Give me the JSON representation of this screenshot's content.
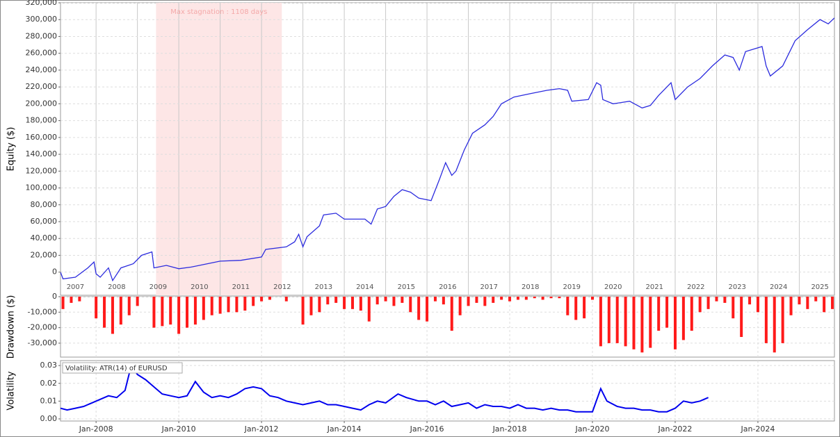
{
  "chart_data": [
    {
      "type": "line",
      "ylabel": "Equity ($)",
      "color": "#2b2bde",
      "xlim": [
        2007.14,
        2025.85
      ],
      "ylim": [
        -27500,
        320000
      ],
      "yticks": [
        0,
        {
          "value": 20000,
          "label": "20,000"
        },
        {
          "value": 40000,
          "label": "40,000"
        },
        {
          "value": 60000,
          "label": "60,000"
        },
        {
          "value": 80000,
          "label": "80,000"
        },
        {
          "value": 100000,
          "label": "100,000"
        },
        {
          "value": 120000,
          "label": "120,000"
        },
        {
          "value": 140000,
          "label": "140,000"
        },
        {
          "value": 160000,
          "label": "160,000"
        },
        {
          "value": 180000,
          "label": "180,000"
        },
        {
          "value": 200000,
          "label": "200,000"
        },
        {
          "value": 220000,
          "label": "220,000"
        },
        {
          "value": 240000,
          "label": "240,000"
        },
        {
          "value": 260000,
          "label": "260,000"
        },
        {
          "value": 280000,
          "label": "280,000"
        },
        {
          "value": 300000,
          "label": "300,000"
        },
        {
          "value": 320000,
          "label": "320,000"
        }
      ],
      "grid": true,
      "year_lines": [
        2008,
        2009,
        2010,
        2011,
        2012,
        2013,
        2014,
        2015,
        2016,
        2017,
        2018,
        2019,
        2020,
        2021,
        2022,
        2023,
        2024,
        2025
      ],
      "year_labels": [
        "2007",
        "2008",
        "2009",
        "2010",
        "2011",
        "2012",
        "2013",
        "2014",
        "2015",
        "2016",
        "2017",
        "2018",
        "2019",
        "2020",
        "2021",
        "2022",
        "2023",
        "2024",
        "2025"
      ],
      "annotation": {
        "text": "Max stagnation : 1108 days",
        "xrange": [
          2009.45,
          2012.49
        ]
      },
      "x": [
        2007.14,
        2007.2,
        2007.5,
        2007.8,
        2007.95,
        2008.0,
        2008.1,
        2008.3,
        2008.4,
        2008.6,
        2008.9,
        2009.1,
        2009.35,
        2009.4,
        2009.7,
        2010.0,
        2010.3,
        2010.6,
        2011.0,
        2011.5,
        2012.0,
        2012.1,
        2012.6,
        2012.8,
        2012.9,
        2013.0,
        2013.1,
        2013.4,
        2013.5,
        2013.8,
        2014.0,
        2014.5,
        2014.65,
        2014.8,
        2015.0,
        2015.2,
        2015.4,
        2015.6,
        2015.8,
        2016.1,
        2016.3,
        2016.45,
        2016.6,
        2016.7,
        2016.9,
        2017.1,
        2017.4,
        2017.6,
        2017.8,
        2018.1,
        2018.5,
        2018.9,
        2019.2,
        2019.4,
        2019.5,
        2019.9,
        2020.1,
        2020.2,
        2020.25,
        2020.5,
        2020.9,
        2021.2,
        2021.4,
        2021.6,
        2021.9,
        2022.0,
        2022.3,
        2022.6,
        2022.9,
        2023.2,
        2023.4,
        2023.55,
        2023.7,
        2024.1,
        2024.2,
        2024.3,
        2024.6,
        2024.9,
        2025.2,
        2025.5,
        2025.7,
        2025.85
      ],
      "values": [
        0,
        -8000,
        -6000,
        5000,
        12000,
        -2000,
        -6000,
        5000,
        -10000,
        5000,
        10000,
        20000,
        24000,
        5000,
        8000,
        4000,
        6000,
        9000,
        13000,
        14000,
        18000,
        27000,
        30000,
        36000,
        45000,
        30000,
        42000,
        55000,
        68000,
        70000,
        63000,
        63000,
        57000,
        75000,
        78000,
        90000,
        98000,
        95000,
        88000,
        85000,
        110000,
        130000,
        115000,
        120000,
        145000,
        165000,
        175000,
        185000,
        200000,
        208000,
        212000,
        216000,
        218000,
        216000,
        203000,
        205000,
        225000,
        222000,
        205000,
        200000,
        203000,
        195000,
        198000,
        210000,
        225000,
        205000,
        220000,
        230000,
        245000,
        258000,
        255000,
        240000,
        262000,
        268000,
        245000,
        233000,
        245000,
        275000,
        288000,
        300000,
        295000,
        302000
      ]
    },
    {
      "type": "bar",
      "ylabel": "Drawdown ($)",
      "color": "#ff1a1a",
      "xlim": [
        2007.14,
        2025.85
      ],
      "ylim": [
        -39000,
        0
      ],
      "yticks": [
        0,
        {
          "value": -10000,
          "label": "-10,000"
        },
        {
          "value": -20000,
          "label": "-20,000"
        },
        {
          "value": -30000,
          "label": "-30,000"
        }
      ],
      "grid": true,
      "x": [
        2007.2,
        2007.4,
        2007.6,
        2007.8,
        2008.0,
        2008.2,
        2008.4,
        2008.6,
        2008.8,
        2009.0,
        2009.2,
        2009.4,
        2009.6,
        2009.8,
        2010.0,
        2010.2,
        2010.4,
        2010.6,
        2010.8,
        2011.0,
        2011.2,
        2011.4,
        2011.6,
        2011.8,
        2012.0,
        2012.2,
        2012.4,
        2012.6,
        2012.8,
        2013.0,
        2013.2,
        2013.4,
        2013.6,
        2013.8,
        2014.0,
        2014.2,
        2014.4,
        2014.6,
        2014.8,
        2015.0,
        2015.2,
        2015.4,
        2015.6,
        2015.8,
        2016.0,
        2016.2,
        2016.4,
        2016.6,
        2016.8,
        2017.0,
        2017.2,
        2017.4,
        2017.6,
        2017.8,
        2018.0,
        2018.2,
        2018.4,
        2018.6,
        2018.8,
        2019.0,
        2019.2,
        2019.4,
        2019.6,
        2019.8,
        2020.0,
        2020.2,
        2020.4,
        2020.6,
        2020.8,
        2021.0,
        2021.2,
        2021.4,
        2021.6,
        2021.8,
        2022.0,
        2022.2,
        2022.4,
        2022.6,
        2022.8,
        2023.0,
        2023.2,
        2023.4,
        2023.6,
        2023.8,
        2024.0,
        2024.2,
        2024.4,
        2024.6,
        2024.8,
        2025.0,
        2025.2,
        2025.4,
        2025.6,
        2025.8
      ],
      "values": [
        -8000,
        -4000,
        -3000,
        0,
        -14000,
        -20000,
        -24000,
        -18000,
        -12000,
        -6000,
        0,
        -20000,
        -19000,
        -18000,
        -24000,
        -20000,
        -18000,
        -15000,
        -12000,
        -11000,
        -10000,
        -10000,
        -9000,
        -6000,
        -3000,
        -2000,
        0,
        -3000,
        0,
        -18000,
        -12000,
        -10000,
        -5000,
        -4000,
        -8000,
        -8000,
        -9000,
        -16000,
        -5000,
        -3000,
        -6000,
        -4000,
        -10000,
        -15000,
        -16000,
        -3000,
        -5000,
        -22000,
        -12000,
        -6000,
        -4000,
        -6000,
        -4000,
        -2000,
        -3000,
        -2000,
        -2000,
        -1000,
        -2000,
        -1000,
        -1000,
        -12000,
        -15000,
        -14000,
        -2000,
        -32000,
        -30000,
        -30000,
        -32000,
        -34000,
        -36000,
        -33000,
        -22000,
        -20000,
        -34000,
        -28000,
        -22000,
        -10000,
        -8000,
        -3000,
        -4000,
        -14000,
        -26000,
        -5000,
        -10000,
        -30000,
        -36000,
        -30000,
        -12000,
        -5000,
        -8000,
        -3000,
        -10000,
        -8000
      ]
    },
    {
      "type": "line",
      "ylabel": "Volatility",
      "color": "#0000ee",
      "series_label": "Volatility: ATR(14) of EURUSD",
      "xlim": [
        2007.14,
        2025.85
      ],
      "ylim": [
        -0.0012,
        0.0328
      ],
      "yticks": [
        {
          "value": 0,
          "label": "0.00"
        },
        0.01,
        0.02,
        0.03
      ],
      "grid": true,
      "xticks": [
        {
          "value": 2008,
          "label": "Jan-2008"
        },
        {
          "value": 2010,
          "label": "Jan-2010"
        },
        {
          "value": 2012,
          "label": "Jan-2012"
        },
        {
          "value": 2014,
          "label": "Jan-2014"
        },
        {
          "value": 2016,
          "label": "Jan-2016"
        },
        {
          "value": 2018,
          "label": "Jan-2018"
        },
        {
          "value": 2020,
          "label": "Jan-2020"
        },
        {
          "value": 2022,
          "label": "Jan-2022"
        },
        {
          "value": 2024,
          "label": "Jan-2024"
        }
      ],
      "x": [
        2007.14,
        2007.3,
        2007.5,
        2007.7,
        2007.9,
        2008.1,
        2008.3,
        2008.5,
        2008.7,
        2008.85,
        2009.0,
        2009.2,
        2009.4,
        2009.6,
        2009.8,
        2010.0,
        2010.2,
        2010.4,
        2010.6,
        2010.8,
        2011.0,
        2011.2,
        2011.4,
        2011.6,
        2011.8,
        2012.0,
        2012.2,
        2012.4,
        2012.6,
        2012.8,
        2013.0,
        2013.2,
        2013.4,
        2013.6,
        2013.8,
        2014.0,
        2014.2,
        2014.4,
        2014.6,
        2014.8,
        2015.0,
        2015.3,
        2015.5,
        2015.8,
        2016.0,
        2016.2,
        2016.4,
        2016.6,
        2016.8,
        2017.0,
        2017.2,
        2017.4,
        2017.6,
        2017.8,
        2018.0,
        2018.2,
        2018.4,
        2018.6,
        2018.8,
        2019.0,
        2019.2,
        2019.4,
        2019.6,
        2019.8,
        2020.0,
        2020.2,
        2020.35,
        2020.6,
        2020.8,
        2021.0,
        2021.2,
        2021.4,
        2021.6,
        2021.8,
        2022.0,
        2022.2,
        2022.4,
        2022.6,
        2022.8
      ],
      "values": [
        0.006,
        0.005,
        0.006,
        0.007,
        0.009,
        0.011,
        0.013,
        0.012,
        0.016,
        0.03,
        0.025,
        0.022,
        0.018,
        0.014,
        0.013,
        0.012,
        0.013,
        0.021,
        0.015,
        0.012,
        0.013,
        0.012,
        0.014,
        0.017,
        0.018,
        0.017,
        0.013,
        0.012,
        0.01,
        0.009,
        0.008,
        0.009,
        0.01,
        0.008,
        0.008,
        0.007,
        0.006,
        0.005,
        0.008,
        0.01,
        0.009,
        0.014,
        0.012,
        0.01,
        0.01,
        0.008,
        0.01,
        0.007,
        0.008,
        0.009,
        0.006,
        0.008,
        0.007,
        0.007,
        0.006,
        0.008,
        0.006,
        0.006,
        0.005,
        0.006,
        0.005,
        0.005,
        0.004,
        0.004,
        0.004,
        0.017,
        0.01,
        0.007,
        0.006,
        0.006,
        0.005,
        0.005,
        0.004,
        0.004,
        0.006,
        0.01,
        0.009,
        0.01,
        0.012
      ]
    }
  ]
}
